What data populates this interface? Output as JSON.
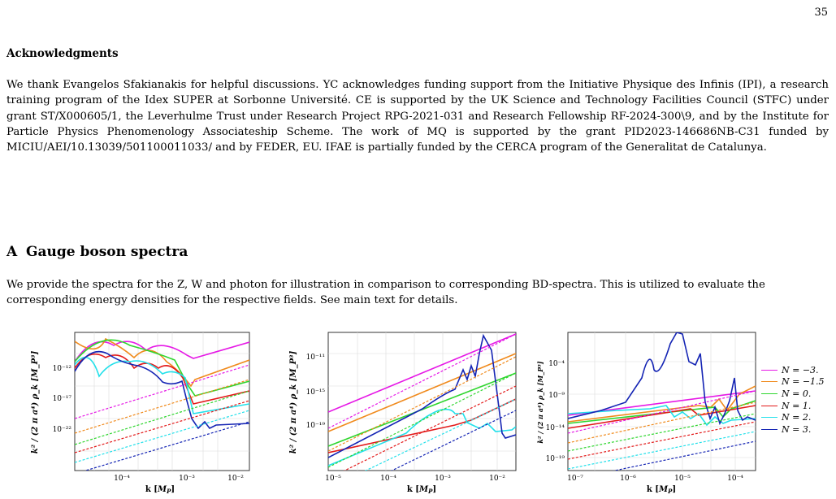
{
  "page_number": "35",
  "acknowledgments": {
    "title": "Acknowledgments",
    "body": "We thank Evangelos Sfakianakis for helpful discussions. YC acknowledges funding support from the Initiative Physique des Infinis (IPI), a research training program of the Idex SUPER at Sorbonne Université. CE is supported by the UK Science and Technology Facilities Council (STFC) under grant ST/X000605/1, the Leverhulme Trust under Research Project RPG-2021-031 and Research Fellowship RF-2024-300\\9, and by the Institute for Particle Physics Phenomenology Associateship Scheme. The work of MQ is supported by the grant PID2023-146686NB-C31 funded by MICIU/AEI/10.13039/501100011033/ and by FEDER, EU. IFAE is partially funded by the CERCA program of the Generalitat de Catalunya."
  },
  "section": {
    "number": "A",
    "title": "Gauge boson spectra",
    "body": "We provide the spectra for the Z, W and photon for illustration in comparison to corresponding BD-spectra. This is utilized to evaluate the corresponding energy densities for the respective fields. See main text for details."
  },
  "chart_data": [
    {
      "type": "line",
      "xlabel": "k [M_P]",
      "ylabel": "k^2 / (2 π a^4) ρ_k [M_P^3]",
      "x_scale": "log",
      "y_scale": "log",
      "x_ticks": [
        "10⁻⁴",
        "10⁻³",
        "10⁻²"
      ],
      "y_ticks": [
        "10⁻¹²",
        "10⁻¹⁷",
        "10⁻²²"
      ],
      "series": [
        "N = −3.",
        "N = −1.5",
        "N = 0.",
        "N = 1.",
        "N = 2.",
        "N = 3."
      ]
    },
    {
      "type": "line",
      "xlabel": "k [M_P]",
      "ylabel": "k^2 / (2 π a^4) ρ_k [M_P^3]",
      "x_scale": "log",
      "y_scale": "log",
      "x_ticks": [
        "10⁻⁵",
        "10⁻⁴",
        "10⁻³",
        "10⁻²"
      ],
      "y_ticks": [
        "10⁻¹¹",
        "10⁻¹⁵",
        "10⁻¹⁹"
      ],
      "series": [
        "N = −3.",
        "N = −1.5",
        "N = 0.",
        "N = 1.",
        "N = 2.",
        "N = 3."
      ]
    },
    {
      "type": "line",
      "xlabel": "k [M_P]",
      "ylabel": "k^2 / (2 π a^4) ρ_k [M_P^3]",
      "x_scale": "log",
      "y_scale": "log",
      "x_ticks": [
        "10⁻⁷",
        "10⁻⁶",
        "10⁻⁵",
        "10⁻⁴"
      ],
      "y_ticks": [
        "10⁻⁴",
        "10⁻⁹",
        "10⁻¹⁴",
        "10⁻¹⁹"
      ],
      "series": [
        "N = −3.",
        "N = −1.5",
        "N = 0.",
        "N = 1.",
        "N = 2.",
        "N = 3."
      ]
    }
  ],
  "legend": [
    {
      "label": "N = −3.",
      "color": "#e619e6"
    },
    {
      "label": "N = −1.5",
      "color": "#f08a1c"
    },
    {
      "label": "N = 0.",
      "color": "#2fd62f"
    },
    {
      "label": "N = 1.",
      "color": "#e31a1a"
    },
    {
      "label": "N = 2.",
      "color": "#22e0ea"
    },
    {
      "label": "N = 3.",
      "color": "#1424b4"
    }
  ]
}
